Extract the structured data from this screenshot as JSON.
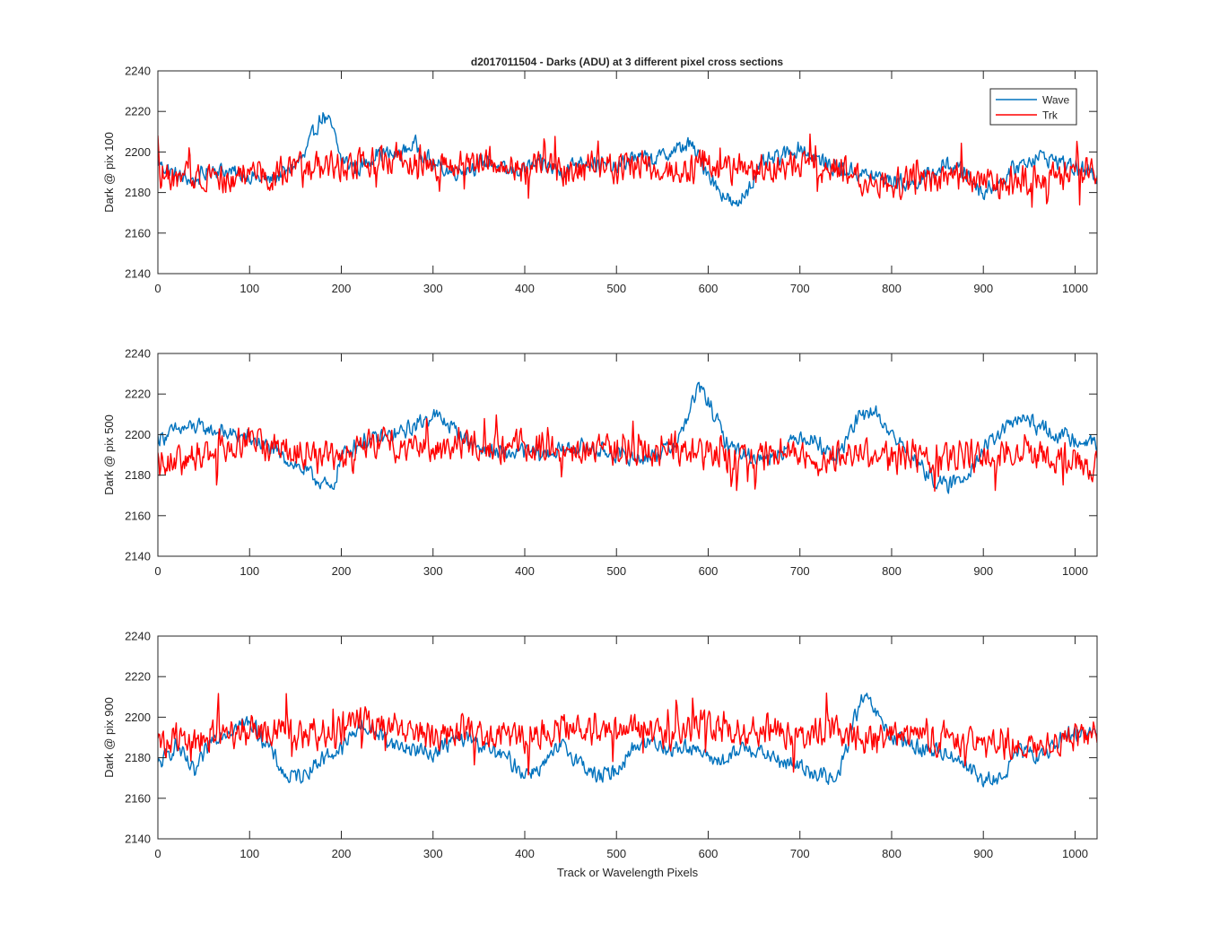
{
  "figure_title": "d2017011504 - Darks (ADU) at 3 different pixel cross sections",
  "colors": {
    "wave": "#0072BD",
    "trk": "#FF0000",
    "axes": "#262626"
  },
  "chart_data": [
    {
      "type": "line",
      "title": "d2017011504 - Darks (ADU) at 3 different pixel cross sections",
      "xlabel": "",
      "ylabel": "Dark @ pix 100",
      "xlim": [
        0,
        1024
      ],
      "ylim": [
        2140,
        2240
      ],
      "xticks": [
        0,
        100,
        200,
        300,
        400,
        500,
        600,
        700,
        800,
        900,
        1000
      ],
      "yticks": [
        2140,
        2160,
        2180,
        2200,
        2220,
        2240
      ],
      "legend": {
        "location": "top-right",
        "entries": [
          "Wave",
          "Trk"
        ]
      },
      "series": [
        {
          "name": "Wave",
          "color": "#0072BD",
          "x": [
            0,
            20,
            40,
            60,
            80,
            100,
            120,
            140,
            160,
            170,
            180,
            190,
            200,
            220,
            240,
            260,
            280,
            300,
            320,
            340,
            360,
            380,
            400,
            420,
            440,
            460,
            480,
            500,
            520,
            540,
            560,
            580,
            600,
            610,
            620,
            630,
            640,
            660,
            680,
            700,
            720,
            740,
            760,
            780,
            800,
            820,
            840,
            860,
            880,
            900,
            920,
            940,
            960,
            980,
            1000,
            1024
          ],
          "values": [
            2195,
            2188,
            2186,
            2192,
            2190,
            2188,
            2186,
            2190,
            2198,
            2210,
            2218,
            2212,
            2196,
            2192,
            2200,
            2198,
            2204,
            2194,
            2190,
            2192,
            2196,
            2190,
            2192,
            2194,
            2190,
            2196,
            2194,
            2192,
            2198,
            2196,
            2200,
            2204,
            2190,
            2182,
            2178,
            2172,
            2180,
            2194,
            2198,
            2202,
            2196,
            2192,
            2190,
            2188,
            2186,
            2184,
            2188,
            2194,
            2190,
            2180,
            2186,
            2194,
            2198,
            2196,
            2192,
            2188
          ]
        },
        {
          "name": "Trk",
          "color": "#FF0000",
          "x": [
            0,
            20,
            40,
            60,
            80,
            100,
            120,
            140,
            160,
            180,
            200,
            220,
            240,
            260,
            280,
            300,
            320,
            340,
            360,
            380,
            400,
            420,
            440,
            460,
            480,
            500,
            520,
            540,
            560,
            580,
            600,
            620,
            640,
            660,
            680,
            700,
            720,
            740,
            760,
            780,
            800,
            820,
            840,
            860,
            880,
            900,
            920,
            940,
            960,
            980,
            1000,
            1024
          ],
          "values": [
            2190,
            2186,
            2188,
            2190,
            2184,
            2192,
            2188,
            2190,
            2192,
            2194,
            2192,
            2196,
            2194,
            2198,
            2196,
            2194,
            2192,
            2194,
            2196,
            2194,
            2192,
            2194,
            2192,
            2190,
            2194,
            2192,
            2194,
            2192,
            2190,
            2192,
            2194,
            2190,
            2192,
            2190,
            2192,
            2194,
            2190,
            2192,
            2188,
            2186,
            2184,
            2186,
            2188,
            2186,
            2188,
            2186,
            2184,
            2186,
            2188,
            2186,
            2188,
            2190
          ]
        }
      ]
    },
    {
      "type": "line",
      "title": "",
      "xlabel": "",
      "ylabel": "Dark @ pix 500",
      "xlim": [
        0,
        1024
      ],
      "ylim": [
        2140,
        2240
      ],
      "xticks": [
        0,
        100,
        200,
        300,
        400,
        500,
        600,
        700,
        800,
        900,
        1000
      ],
      "yticks": [
        2140,
        2160,
        2180,
        2200,
        2220,
        2240
      ],
      "series": [
        {
          "name": "Wave",
          "color": "#0072BD",
          "x": [
            0,
            20,
            40,
            60,
            80,
            100,
            120,
            140,
            160,
            180,
            190,
            200,
            220,
            240,
            260,
            280,
            300,
            320,
            340,
            360,
            380,
            400,
            420,
            440,
            460,
            480,
            500,
            520,
            540,
            560,
            570,
            580,
            590,
            600,
            620,
            640,
            660,
            680,
            700,
            720,
            740,
            760,
            780,
            800,
            820,
            840,
            860,
            880,
            900,
            920,
            940,
            960,
            980,
            1000,
            1024
          ],
          "values": [
            2198,
            2202,
            2204,
            2202,
            2200,
            2198,
            2194,
            2188,
            2182,
            2176,
            2172,
            2190,
            2196,
            2198,
            2200,
            2204,
            2210,
            2204,
            2196,
            2192,
            2190,
            2192,
            2190,
            2192,
            2194,
            2192,
            2190,
            2188,
            2190,
            2194,
            2200,
            2212,
            2224,
            2216,
            2196,
            2190,
            2188,
            2192,
            2200,
            2196,
            2188,
            2206,
            2212,
            2200,
            2190,
            2180,
            2174,
            2180,
            2192,
            2202,
            2208,
            2204,
            2200,
            2198,
            2196
          ]
        },
        {
          "name": "Trk",
          "color": "#FF0000",
          "x": [
            0,
            20,
            40,
            60,
            80,
            100,
            120,
            140,
            160,
            180,
            200,
            220,
            240,
            260,
            280,
            300,
            320,
            340,
            360,
            380,
            400,
            420,
            440,
            460,
            480,
            500,
            520,
            540,
            560,
            580,
            600,
            620,
            640,
            660,
            680,
            700,
            720,
            740,
            760,
            780,
            800,
            820,
            840,
            860,
            880,
            900,
            920,
            940,
            960,
            980,
            1000,
            1024
          ],
          "values": [
            2188,
            2186,
            2190,
            2192,
            2196,
            2198,
            2194,
            2192,
            2190,
            2188,
            2192,
            2194,
            2196,
            2194,
            2196,
            2194,
            2192,
            2196,
            2194,
            2192,
            2196,
            2194,
            2192,
            2190,
            2194,
            2192,
            2190,
            2192,
            2194,
            2190,
            2192,
            2190,
            2188,
            2190,
            2192,
            2190,
            2188,
            2190,
            2192,
            2190,
            2188,
            2190,
            2186,
            2188,
            2190,
            2188,
            2190,
            2192,
            2190,
            2188,
            2186,
            2184
          ]
        }
      ]
    },
    {
      "type": "line",
      "title": "",
      "xlabel": "Track or Wavelength Pixels",
      "ylabel": "Dark @ pix 900",
      "xlim": [
        0,
        1024
      ],
      "ylim": [
        2140,
        2240
      ],
      "xticks": [
        0,
        100,
        200,
        300,
        400,
        500,
        600,
        700,
        800,
        900,
        1000
      ],
      "yticks": [
        2140,
        2160,
        2180,
        2200,
        2220,
        2240
      ],
      "series": [
        {
          "name": "Wave",
          "color": "#0072BD",
          "x": [
            0,
            20,
            40,
            60,
            80,
            100,
            120,
            140,
            160,
            180,
            200,
            220,
            240,
            260,
            280,
            300,
            320,
            340,
            360,
            380,
            400,
            420,
            440,
            460,
            480,
            500,
            520,
            540,
            560,
            580,
            600,
            620,
            640,
            660,
            680,
            700,
            720,
            740,
            760,
            770,
            780,
            800,
            820,
            840,
            860,
            880,
            900,
            920,
            940,
            960,
            980,
            1000,
            1024
          ],
          "values": [
            2176,
            2186,
            2172,
            2190,
            2194,
            2198,
            2186,
            2170,
            2172,
            2180,
            2184,
            2196,
            2192,
            2186,
            2184,
            2182,
            2188,
            2190,
            2184,
            2180,
            2172,
            2176,
            2186,
            2178,
            2170,
            2174,
            2186,
            2188,
            2184,
            2186,
            2180,
            2178,
            2186,
            2182,
            2178,
            2176,
            2172,
            2168,
            2200,
            2210,
            2204,
            2190,
            2186,
            2184,
            2182,
            2178,
            2168,
            2170,
            2184,
            2180,
            2188,
            2192,
            2194
          ]
        },
        {
          "name": "Trk",
          "color": "#FF0000",
          "x": [
            0,
            20,
            40,
            60,
            80,
            100,
            120,
            140,
            160,
            180,
            200,
            220,
            240,
            260,
            280,
            300,
            320,
            340,
            360,
            380,
            400,
            420,
            440,
            460,
            480,
            500,
            520,
            540,
            560,
            580,
            600,
            620,
            640,
            660,
            680,
            700,
            720,
            740,
            760,
            780,
            800,
            820,
            840,
            860,
            880,
            900,
            920,
            940,
            960,
            980,
            1000,
            1024
          ],
          "values": [
            2186,
            2190,
            2188,
            2190,
            2192,
            2194,
            2192,
            2194,
            2190,
            2192,
            2194,
            2198,
            2196,
            2194,
            2192,
            2190,
            2192,
            2194,
            2190,
            2192,
            2190,
            2192,
            2194,
            2196,
            2194,
            2192,
            2194,
            2192,
            2190,
            2194,
            2196,
            2194,
            2192,
            2194,
            2192,
            2190,
            2192,
            2194,
            2190,
            2188,
            2192,
            2190,
            2188,
            2190,
            2188,
            2186,
            2188,
            2186,
            2184,
            2188,
            2190,
            2192
          ]
        }
      ]
    }
  ]
}
